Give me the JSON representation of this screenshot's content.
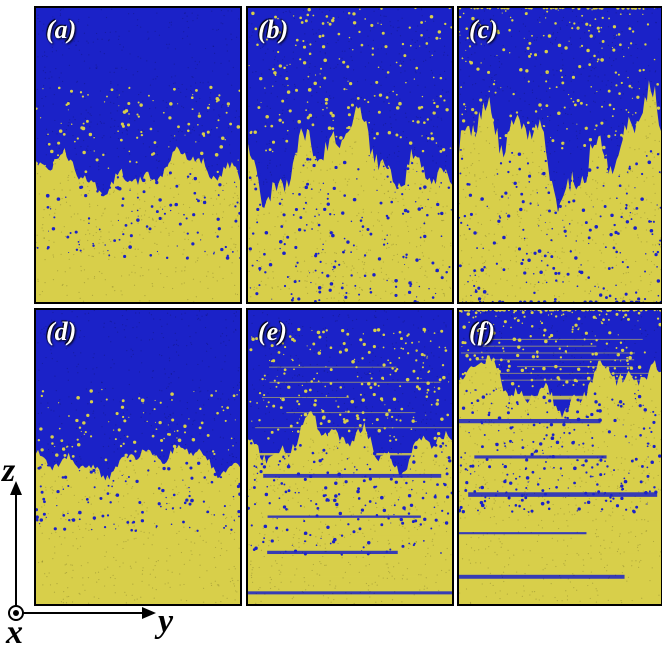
{
  "colors": {
    "blue_phase": "#1b22c8",
    "yellow_phase": "#d8cf4a",
    "panel_border": "#000000",
    "label_text": "#ffffff"
  },
  "panels": [
    {
      "label": "(a)",
      "interface_level": 0.56,
      "roughness": 0.08,
      "mixing": 0.1,
      "layering": 0.0
    },
    {
      "label": "(b)",
      "interface_level": 0.5,
      "roughness": 0.16,
      "mixing": 0.3,
      "layering": 0.0
    },
    {
      "label": "(c)",
      "interface_level": 0.48,
      "roughness": 0.2,
      "mixing": 0.4,
      "layering": 0.0
    },
    {
      "label": "(d)",
      "interface_level": 0.51,
      "roughness": 0.06,
      "mixing": 0.08,
      "layering": 0.0
    },
    {
      "label": "(e)",
      "interface_level": 0.45,
      "roughness": 0.1,
      "mixing": 0.3,
      "layering": 0.6
    },
    {
      "label": "(f)",
      "interface_level": 0.26,
      "roughness": 0.1,
      "mixing": 0.45,
      "layering": 0.85
    }
  ],
  "axes": {
    "vertical_label": "z",
    "horizontal_label": "y",
    "out_of_plane_label": "x"
  }
}
